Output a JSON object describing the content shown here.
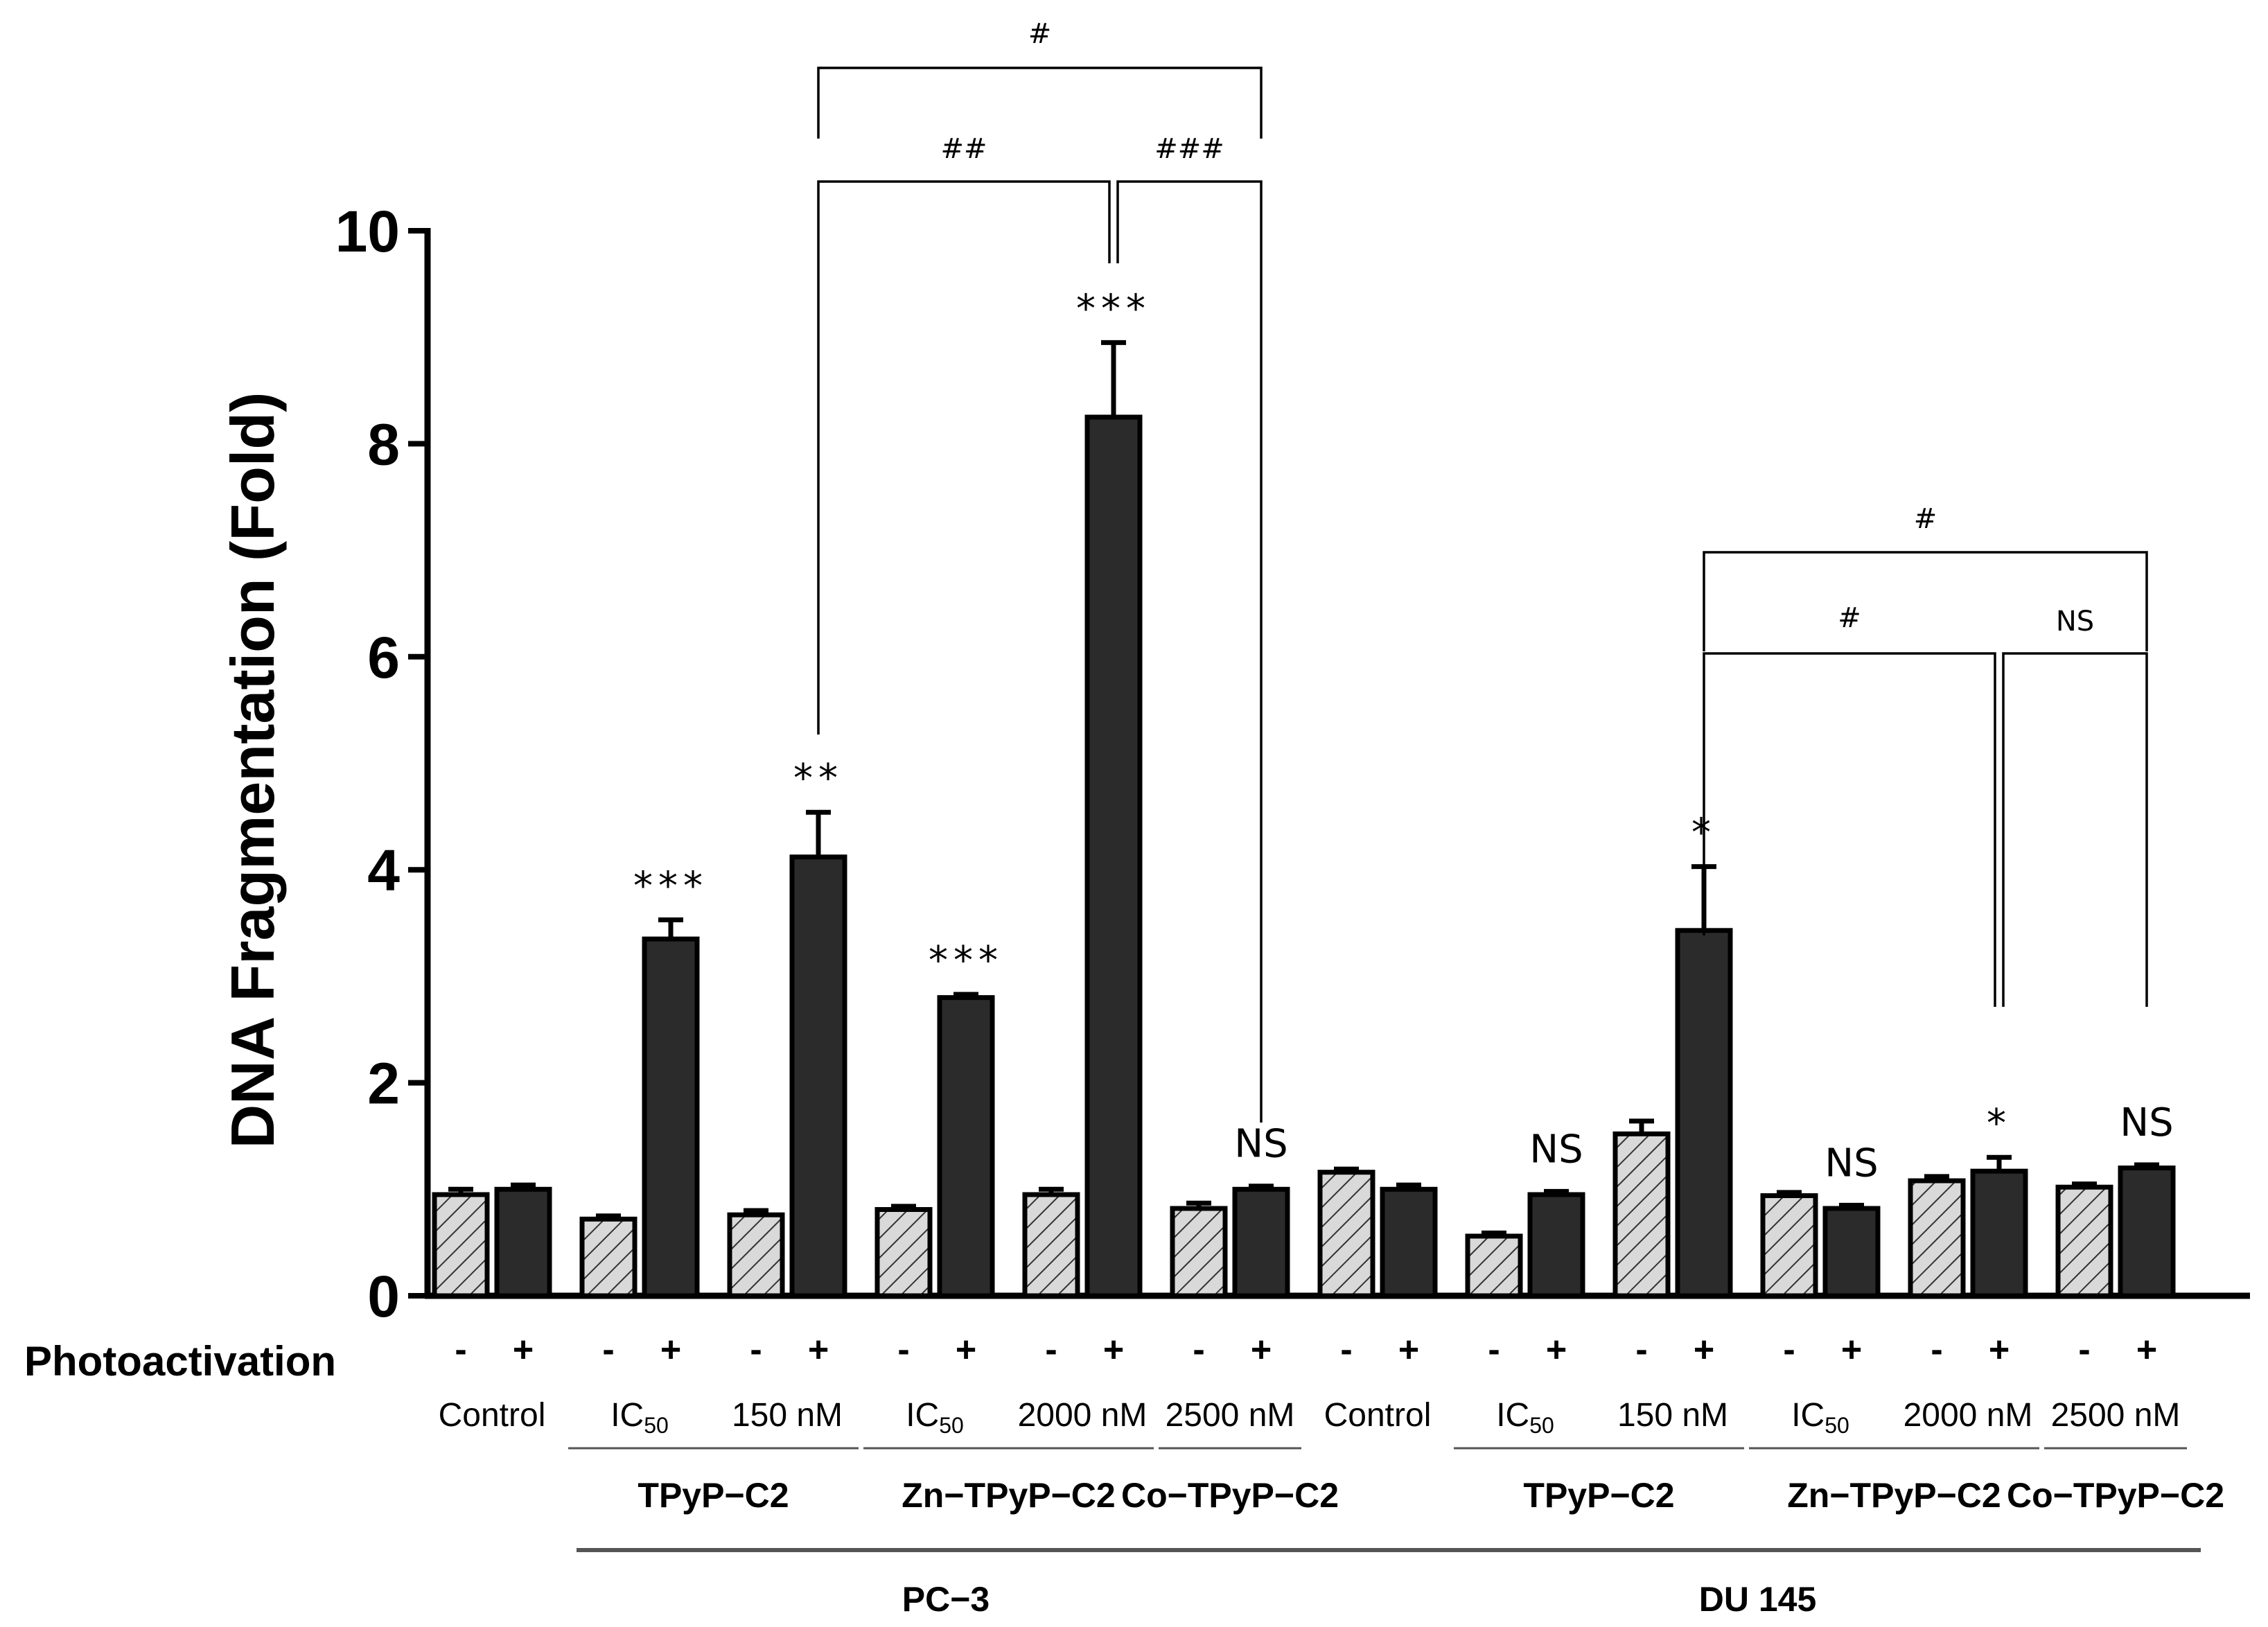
{
  "chart_data": {
    "type": "bar",
    "ylabel": "DNA Fragmentation (Fold)",
    "ylim": [
      0,
      10
    ],
    "yticks": [
      "0",
      "2",
      "4",
      "6",
      "8",
      "10"
    ],
    "photoactivation_label": "Photoactivation",
    "series": [
      {
        "name": "-",
        "photoactivation": "-",
        "fill": "hatched"
      },
      {
        "name": "+",
        "photoactivation": "+",
        "fill": "#2b2b2b"
      }
    ],
    "groups": [
      {
        "cell_line": "PC-3",
        "condition": "Control",
        "compound": "",
        "values": [
          0.95,
          1.0
        ],
        "errors": [
          0.05,
          0.04
        ],
        "sig": [
          "",
          ""
        ]
      },
      {
        "cell_line": "PC-3",
        "condition": "IC50",
        "compound": "TPyP-C2",
        "values": [
          0.72,
          3.35
        ],
        "errors": [
          0.03,
          0.18
        ],
        "sig": [
          "",
          "***"
        ]
      },
      {
        "cell_line": "PC-3",
        "condition": "150 nM",
        "compound": "TPyP-C2",
        "values": [
          0.76,
          4.12
        ],
        "errors": [
          0.04,
          0.42
        ],
        "sig": [
          "",
          "**"
        ]
      },
      {
        "cell_line": "PC-3",
        "condition": "IC50",
        "compound": "Zn-TPyP-C2",
        "values": [
          0.81,
          2.8
        ],
        "errors": [
          0.03,
          0.03
        ],
        "sig": [
          "",
          "***"
        ]
      },
      {
        "cell_line": "PC-3",
        "condition": "2000 nM",
        "compound": "Zn-TPyP-C2",
        "values": [
          0.95,
          8.25
        ],
        "errors": [
          0.05,
          0.7
        ],
        "sig": [
          "",
          "***"
        ]
      },
      {
        "cell_line": "PC-3",
        "condition": "2500 nM",
        "compound": "Co-TPyP-C2",
        "values": [
          0.82,
          1.0
        ],
        "errors": [
          0.05,
          0.03
        ],
        "sig": [
          "",
          "NS"
        ]
      },
      {
        "cell_line": "DU 145",
        "condition": "Control",
        "compound": "",
        "values": [
          1.16,
          1.0
        ],
        "errors": [
          0.03,
          0.04
        ],
        "sig": [
          "",
          ""
        ]
      },
      {
        "cell_line": "DU 145",
        "condition": "IC50",
        "compound": "TPyP-C2",
        "values": [
          0.56,
          0.95
        ],
        "errors": [
          0.03,
          0.03
        ],
        "sig": [
          "",
          "NS"
        ]
      },
      {
        "cell_line": "DU 145",
        "condition": "150 nM",
        "compound": "TPyP-C2",
        "values": [
          1.52,
          3.43
        ],
        "errors": [
          0.12,
          0.6
        ],
        "sig": [
          "",
          "*"
        ]
      },
      {
        "cell_line": "DU 145",
        "condition": "IC50",
        "compound": "Zn-TPyP-C2",
        "values": [
          0.94,
          0.82
        ],
        "errors": [
          0.03,
          0.03
        ],
        "sig": [
          "",
          "NS"
        ]
      },
      {
        "cell_line": "DU 145",
        "condition": "2000 nM",
        "compound": "Zn-TPyP-C2",
        "values": [
          1.08,
          1.17
        ],
        "errors": [
          0.04,
          0.13
        ],
        "sig": [
          "",
          "*"
        ]
      },
      {
        "cell_line": "DU 145",
        "condition": "2500 nM",
        "compound": "Co-TPyP-C2",
        "values": [
          1.02,
          1.2
        ],
        "errors": [
          0.03,
          0.03
        ],
        "sig": [
          "",
          "NS"
        ]
      }
    ],
    "compound_labels": [
      {
        "text": "TPyP−C2",
        "groups": [
          1,
          2
        ]
      },
      {
        "text": "Zn−TPyP−C2",
        "groups": [
          3,
          4
        ]
      },
      {
        "text": "Co−TPyP−C2",
        "groups": [
          5,
          5
        ]
      },
      {
        "text": "TPyP−C2",
        "groups": [
          7,
          8
        ]
      },
      {
        "text": "Zn−TPyP−C2",
        "groups": [
          9,
          10
        ]
      },
      {
        "text": "Co−TPyP−C2",
        "groups": [
          11,
          11
        ]
      }
    ],
    "cell_line_labels": [
      {
        "text": "PC−3",
        "groups": [
          1,
          5
        ]
      },
      {
        "text": "DU 145",
        "groups": [
          6,
          11
        ]
      }
    ],
    "comparisons": [
      {
        "from": 2,
        "to": 5,
        "label": "#"
      },
      {
        "from": 2,
        "to": 4,
        "label": "##"
      },
      {
        "from": 4,
        "to": 5,
        "label": "###"
      },
      {
        "from": 8,
        "to": 11,
        "label": "#"
      },
      {
        "from": 8,
        "to": 10,
        "label": "#"
      },
      {
        "from": 10,
        "to": 11,
        "label": "NS"
      }
    ]
  }
}
